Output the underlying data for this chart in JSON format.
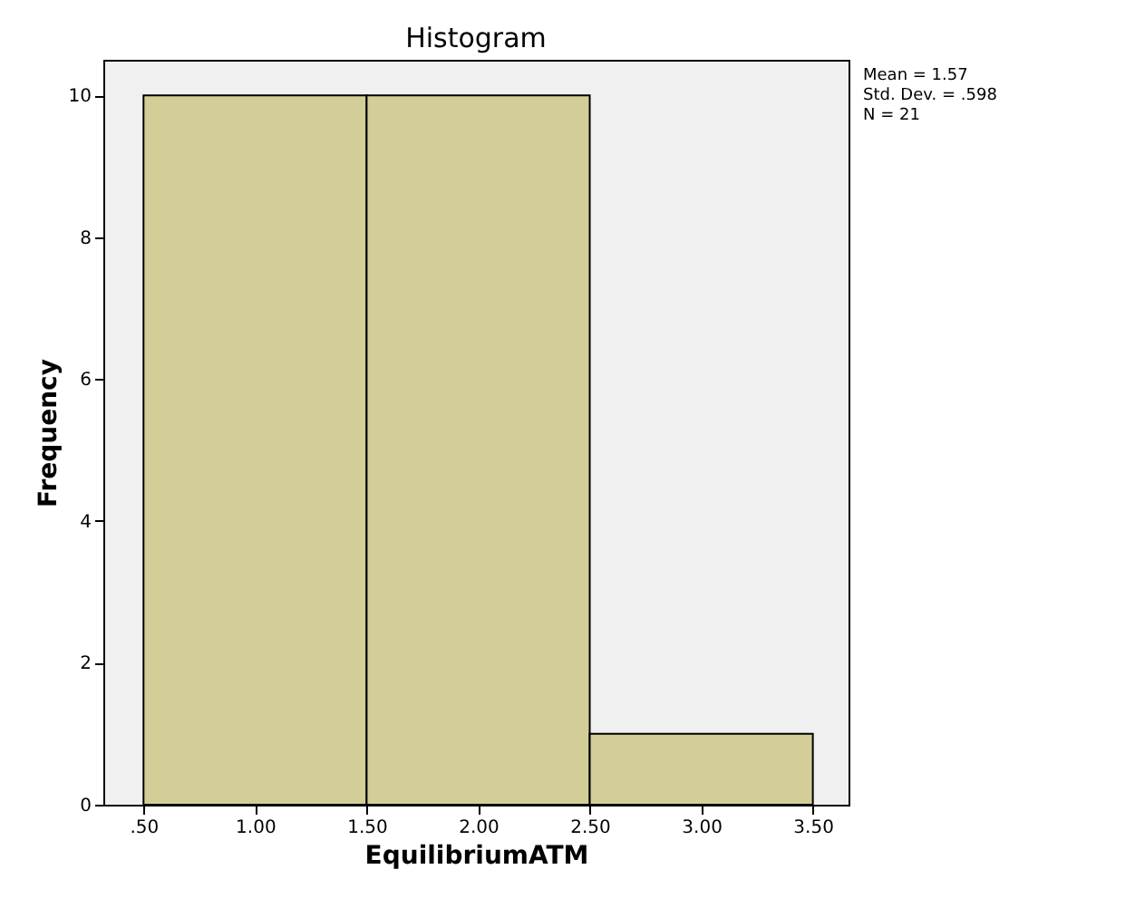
{
  "chart_data": {
    "type": "histogram",
    "title": "Histogram",
    "xlabel": "EquilibriumATM",
    "ylabel": "Frequency",
    "bins": [
      0.5,
      1.5,
      2.5,
      3.5
    ],
    "values": [
      10,
      10,
      1
    ],
    "color": "#d3ce98",
    "xlim": [
      0.32,
      3.66
    ],
    "ylim": [
      0,
      10.5
    ],
    "xticks": [
      {
        "value": 0.5,
        "label": ".50"
      },
      {
        "value": 1.0,
        "label": "1.00"
      },
      {
        "value": 1.5,
        "label": "1.50"
      },
      {
        "value": 2.0,
        "label": "2.00"
      },
      {
        "value": 2.5,
        "label": "2.50"
      },
      {
        "value": 3.0,
        "label": "3.00"
      },
      {
        "value": 3.5,
        "label": "3.50"
      }
    ],
    "yticks": [
      0,
      2,
      4,
      6,
      8,
      10
    ],
    "annotations": [
      "Mean = 1.57",
      "Std. Dev. = .598",
      "N = 21"
    ],
    "grid": false
  }
}
